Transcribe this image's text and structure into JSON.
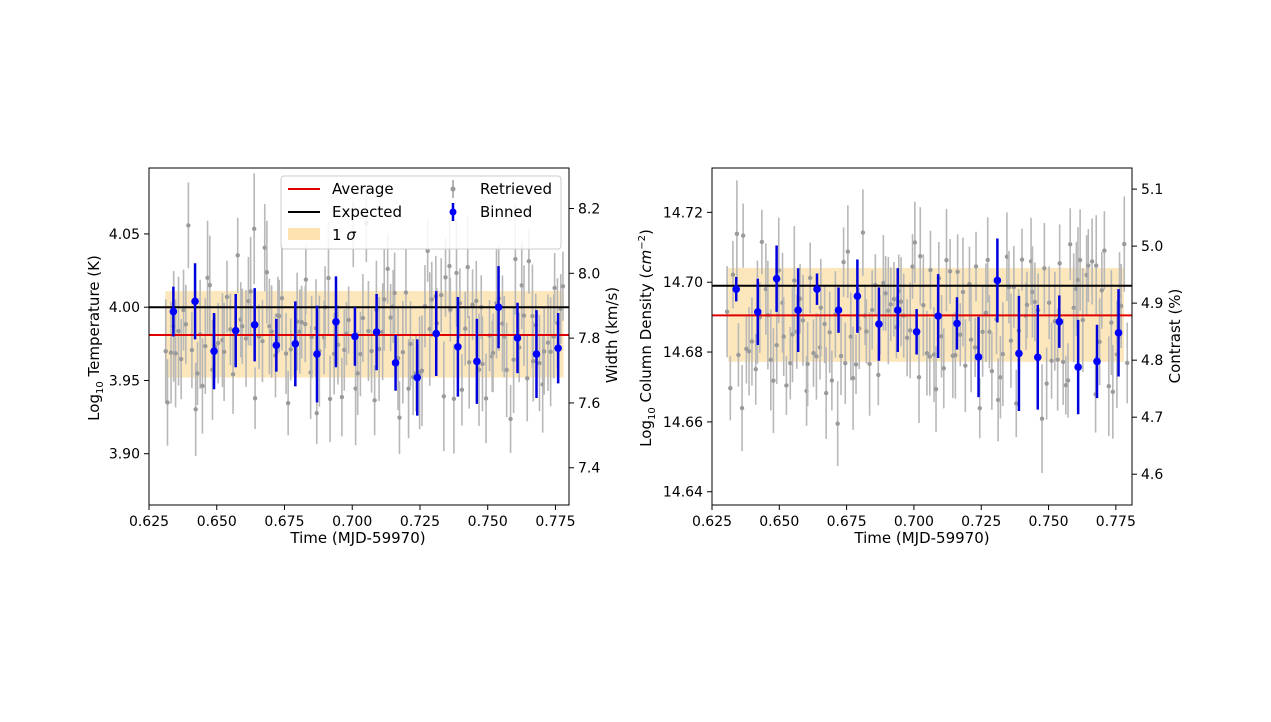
{
  "chart_data": [
    {
      "type": "scatter",
      "xlabel": "Time (MJD-59970)",
      "ylabel_prefix": "Log",
      "ylabel_sub": "10",
      "ylabel_rest": " Temperature (K)",
      "y2label": "Width (km/s)",
      "xlim": [
        0.625,
        0.78
      ],
      "ylim": [
        3.865,
        4.095
      ],
      "y2lim": [
        7.285,
        8.325
      ],
      "xticks": [
        0.625,
        0.65,
        0.675,
        0.7,
        0.725,
        0.75,
        0.775
      ],
      "xtick_labels": [
        "0.625",
        "0.650",
        "0.675",
        "0.700",
        "0.725",
        "0.750",
        "0.775"
      ],
      "yticks": [
        3.9,
        3.95,
        4.0,
        4.05
      ],
      "ytick_labels": [
        "3.90",
        "3.95",
        "4.00",
        "4.05"
      ],
      "y2ticks": [
        7.4,
        7.6,
        7.8,
        8.0,
        8.2
      ],
      "y2tick_labels": [
        "7.4",
        "7.6",
        "7.8",
        "8.0",
        "8.2"
      ],
      "average": 3.981,
      "expected": 4.0,
      "sigma_band": {
        "x": [
          0.631,
          0.778
        ],
        "y": [
          3.952,
          4.011
        ]
      },
      "retrieved_y_center": 3.981,
      "retrieved_y_spread": 0.028,
      "retrieved_err": 0.03,
      "binned": {
        "x": [
          0.634,
          0.642,
          0.649,
          0.657,
          0.664,
          0.672,
          0.679,
          0.687,
          0.694,
          0.701,
          0.709,
          0.716,
          0.724,
          0.731,
          0.739,
          0.746,
          0.754,
          0.761,
          0.768,
          0.776
        ],
        "y": [
          3.997,
          4.004,
          3.97,
          3.984,
          3.988,
          3.974,
          3.975,
          3.968,
          3.99,
          3.98,
          3.983,
          3.962,
          3.952,
          3.982,
          3.973,
          3.963,
          4.0,
          3.979,
          3.968,
          3.972
        ],
        "err": [
          0.017,
          0.026,
          0.026,
          0.025,
          0.025,
          0.018,
          0.029,
          0.033,
          0.031,
          0.02,
          0.026,
          0.019,
          0.026,
          0.029,
          0.034,
          0.029,
          0.028,
          0.024,
          0.03,
          0.024
        ]
      },
      "legend": {
        "average": "Average",
        "expected": "Expected",
        "sigma_prefix": "1 ",
        "sigma_symbol": "σ",
        "retrieved": "Retrieved",
        "binned": "Binned"
      }
    },
    {
      "type": "scatter",
      "xlabel": "Time (MJD-59970)",
      "ylabel_prefix": "Log",
      "ylabel_sub": "10",
      "ylabel_rest": " Column Density (",
      "ylabel_unit": "cm",
      "ylabel_exp": "−2",
      "ylabel_close": ")",
      "y2label": "Contrast (%)",
      "xlim": [
        0.625,
        0.781
      ],
      "ylim": [
        14.6362,
        14.7327
      ],
      "y2lim": [
        4.546,
        5.137
      ],
      "xticks": [
        0.625,
        0.65,
        0.675,
        0.7,
        0.725,
        0.75,
        0.775
      ],
      "xtick_labels": [
        "0.625",
        "0.650",
        "0.675",
        "0.700",
        "0.725",
        "0.750",
        "0.775"
      ],
      "yticks": [
        14.64,
        14.66,
        14.68,
        14.7,
        14.72
      ],
      "ytick_labels": [
        "14.64",
        "14.66",
        "14.68",
        "14.70",
        "14.72"
      ],
      "y2ticks": [
        4.6,
        4.7,
        4.8,
        4.9,
        5.0,
        5.1
      ],
      "y2tick_labels": [
        "4.6",
        "4.7",
        "4.8",
        "4.9",
        "5.0",
        "5.1"
      ],
      "average": 14.6905,
      "expected": 14.699,
      "sigma_band": {
        "x": [
          0.631,
          0.778
        ],
        "y": [
          14.6772,
          14.7041
        ]
      },
      "retrieved_y_center": 14.69,
      "retrieved_y_spread": 0.013,
      "retrieved_err": 0.012,
      "binned": {
        "x": [
          0.634,
          0.642,
          0.649,
          0.657,
          0.664,
          0.672,
          0.679,
          0.687,
          0.694,
          0.701,
          0.709,
          0.716,
          0.724,
          0.731,
          0.739,
          0.746,
          0.754,
          0.761,
          0.768,
          0.776
        ],
        "y": [
          14.698,
          14.6915,
          14.701,
          14.692,
          14.698,
          14.692,
          14.696,
          14.688,
          14.692,
          14.6858,
          14.6903,
          14.6882,
          14.6786,
          14.7005,
          14.6796,
          14.6785,
          14.6887,
          14.6757,
          14.6773,
          14.6855
        ],
        "err": [
          0.0035,
          0.0095,
          0.0095,
          0.012,
          0.0045,
          0.0065,
          0.0105,
          0.0105,
          0.012,
          0.0065,
          0.012,
          0.0075,
          0.0115,
          0.012,
          0.0165,
          0.015,
          0.0075,
          0.0135,
          0.0105,
          0.0125
        ]
      }
    }
  ]
}
